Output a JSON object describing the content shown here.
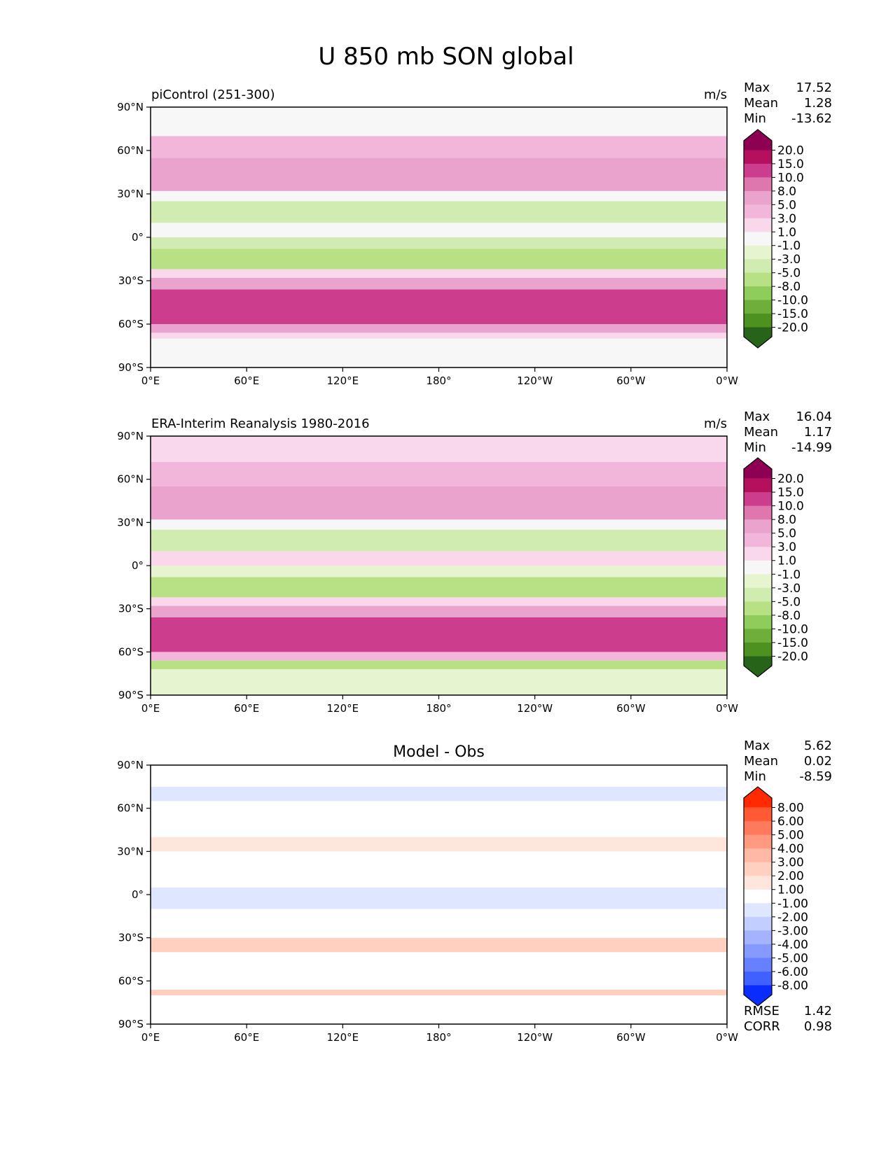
{
  "figure_title": "U 850 mb SON global",
  "chart_data": [
    {
      "type": "heatmap",
      "panel": "test",
      "title": "piControl (251-300)",
      "units": "m/s",
      "stats": [
        {
          "label": "Max",
          "value": "17.52"
        },
        {
          "label": "Mean",
          "value": "1.28"
        },
        {
          "label": "Min",
          "value": "-13.62"
        }
      ],
      "colorbar": {
        "labels": [
          "20.0",
          "15.0",
          "10.0",
          "8.0",
          "5.0",
          "3.0",
          "1.0",
          "-1.0",
          "-3.0",
          "-5.0",
          "-8.0",
          "-10.0",
          "-15.0",
          "-20.0"
        ],
        "colors": [
          "#8e0152",
          "#b5105e",
          "#cc3d8e",
          "#de77ae",
          "#eaa3cd",
          "#f1b6da",
          "#f8d8ea",
          "#f7f7f7",
          "#e6f5d0",
          "#d0ecb0",
          "#b8e186",
          "#8ecc5c",
          "#6eae3b",
          "#4d9221",
          "#276419"
        ],
        "extend": "both"
      },
      "xticks": [
        "0°E",
        "60°E",
        "120°E",
        "180°",
        "120°W",
        "60°W",
        "0°W"
      ],
      "yticks": [
        "90°N",
        "60°N",
        "30°N",
        "0°",
        "30°S",
        "60°S",
        "90°S"
      ],
      "xlim": [
        0,
        360
      ],
      "ylim": [
        -90,
        90
      ],
      "field": [
        {
          "lat": [
            -90,
            -70
          ],
          "value": -1.0
        },
        {
          "lat": [
            -70,
            -66
          ],
          "value": 2.0
        },
        {
          "lat": [
            -66,
            -60
          ],
          "value": 6.0
        },
        {
          "lat": [
            -60,
            -36
          ],
          "value": 11.0
        },
        {
          "lat": [
            -36,
            -28
          ],
          "value": 6.0
        },
        {
          "lat": [
            -28,
            -22
          ],
          "value": 2.0
        },
        {
          "lat": [
            -22,
            -8
          ],
          "value": -6.0
        },
        {
          "lat": [
            -8,
            0
          ],
          "value": -4.0
        },
        {
          "lat": [
            0,
            10
          ],
          "value": 0.0
        },
        {
          "lat": [
            10,
            25
          ],
          "value": -5.0
        },
        {
          "lat": [
            25,
            32
          ],
          "value": 0.0
        },
        {
          "lat": [
            32,
            55
          ],
          "value": 7.0
        },
        {
          "lat": [
            55,
            70
          ],
          "value": 3.0
        },
        {
          "lat": [
            70,
            90
          ],
          "value": -1.0
        }
      ]
    },
    {
      "type": "heatmap",
      "panel": "reference",
      "title": "ERA-Interim Reanalysis 1980-2016",
      "units": "m/s",
      "stats": [
        {
          "label": "Max",
          "value": "16.04"
        },
        {
          "label": "Mean",
          "value": "1.17"
        },
        {
          "label": "Min",
          "value": "-14.99"
        }
      ],
      "colorbar": {
        "labels": [
          "20.0",
          "15.0",
          "10.0",
          "8.0",
          "5.0",
          "3.0",
          "1.0",
          "-1.0",
          "-3.0",
          "-5.0",
          "-8.0",
          "-10.0",
          "-15.0",
          "-20.0"
        ],
        "colors": [
          "#8e0152",
          "#b5105e",
          "#cc3d8e",
          "#de77ae",
          "#eaa3cd",
          "#f1b6da",
          "#f8d8ea",
          "#f7f7f7",
          "#e6f5d0",
          "#d0ecb0",
          "#b8e186",
          "#8ecc5c",
          "#6eae3b",
          "#4d9221",
          "#276419"
        ],
        "extend": "both"
      },
      "xticks": [
        "0°E",
        "60°E",
        "120°E",
        "180°",
        "120°W",
        "60°W",
        "0°W"
      ],
      "yticks": [
        "90°N",
        "60°N",
        "30°N",
        "0°",
        "30°S",
        "60°S",
        "90°S"
      ],
      "xlim": [
        0,
        360
      ],
      "ylim": [
        -90,
        90
      ],
      "field": [
        {
          "lat": [
            -90,
            -72
          ],
          "value": -2.0
        },
        {
          "lat": [
            -72,
            -66
          ],
          "value": -6.0
        },
        {
          "lat": [
            -66,
            -60
          ],
          "value": 4.0
        },
        {
          "lat": [
            -60,
            -36
          ],
          "value": 11.0
        },
        {
          "lat": [
            -36,
            -28
          ],
          "value": 5.0
        },
        {
          "lat": [
            -28,
            -22
          ],
          "value": 1.5
        },
        {
          "lat": [
            -22,
            -8
          ],
          "value": -6.0
        },
        {
          "lat": [
            -8,
            0
          ],
          "value": -3.0
        },
        {
          "lat": [
            0,
            10
          ],
          "value": 2.0
        },
        {
          "lat": [
            10,
            25
          ],
          "value": -5.0
        },
        {
          "lat": [
            25,
            32
          ],
          "value": 0.0
        },
        {
          "lat": [
            32,
            55
          ],
          "value": 6.0
        },
        {
          "lat": [
            55,
            72
          ],
          "value": 3.0
        },
        {
          "lat": [
            72,
            90
          ],
          "value": 2.0
        }
      ]
    },
    {
      "type": "heatmap",
      "panel": "difference",
      "title": "Model - Obs",
      "units": "",
      "stats": [
        {
          "label": "Max",
          "value": "5.62"
        },
        {
          "label": "Mean",
          "value": "0.02"
        },
        {
          "label": "Min",
          "value": "-8.59"
        }
      ],
      "metrics": [
        {
          "label": "RMSE",
          "value": "1.42"
        },
        {
          "label": "CORR",
          "value": "0.98"
        }
      ],
      "colorbar": {
        "labels": [
          "8.00",
          "6.00",
          "5.00",
          "4.00",
          "3.00",
          "2.00",
          "1.00",
          "-1.00",
          "-2.00",
          "-3.00",
          "-4.00",
          "-5.00",
          "-6.00",
          "-8.00"
        ],
        "colors": [
          "#ff2a00",
          "#ff5a33",
          "#ff7a5c",
          "#ff9a80",
          "#ffb8a3",
          "#ffd0c0",
          "#ffe6dc",
          "#ffffff",
          "#dfe6ff",
          "#c2ceff",
          "#a3b3ff",
          "#8599ff",
          "#6680ff",
          "#4060ff",
          "#0a2cff"
        ],
        "extend": "both"
      },
      "xticks": [
        "0°E",
        "60°E",
        "120°E",
        "180°",
        "120°W",
        "60°W",
        "0°W"
      ],
      "yticks": [
        "90°N",
        "60°N",
        "30°N",
        "0°",
        "30°S",
        "60°S",
        "90°S"
      ],
      "xlim": [
        0,
        360
      ],
      "ylim": [
        -90,
        90
      ],
      "field": [
        {
          "lat": [
            -90,
            -70
          ],
          "value": 0.0
        },
        {
          "lat": [
            -70,
            -66
          ],
          "value": 2.0
        },
        {
          "lat": [
            -66,
            -40
          ],
          "value": 0.0
        },
        {
          "lat": [
            -40,
            -30
          ],
          "value": 2.5
        },
        {
          "lat": [
            -30,
            -10
          ],
          "value": 0.0
        },
        {
          "lat": [
            -10,
            5
          ],
          "value": -1.5
        },
        {
          "lat": [
            5,
            30
          ],
          "value": 0.0
        },
        {
          "lat": [
            30,
            40
          ],
          "value": 1.5
        },
        {
          "lat": [
            40,
            65
          ],
          "value": 0.0
        },
        {
          "lat": [
            65,
            75
          ],
          "value": -1.5
        },
        {
          "lat": [
            75,
            90
          ],
          "value": 0.0
        }
      ]
    }
  ]
}
